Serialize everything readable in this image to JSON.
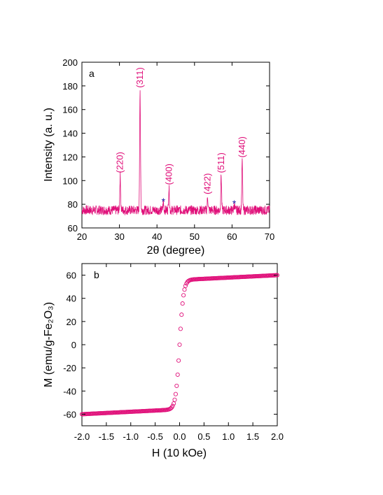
{
  "chart_data": [
    {
      "type": "line",
      "panel_label": "a",
      "xlabel": "2θ (degree)",
      "ylabel": "Intensity (a. u.)",
      "xlim": [
        20,
        70
      ],
      "ylim": [
        60,
        200
      ],
      "xticks": [
        20,
        30,
        40,
        50,
        60,
        70
      ],
      "yticks": [
        60,
        80,
        100,
        120,
        140,
        160,
        180,
        200
      ],
      "line_color": "#e0107a",
      "marker_color": "#1a1aa8",
      "baseline": 75,
      "peaks": [
        {
          "x": 30.2,
          "y": 104,
          "label": "(220)"
        },
        {
          "x": 35.5,
          "y": 176,
          "label": "(311)"
        },
        {
          "x": 43.2,
          "y": 94,
          "label": "(400)"
        },
        {
          "x": 53.5,
          "y": 86,
          "label": "(422)"
        },
        {
          "x": 57.1,
          "y": 104,
          "label": "(511)"
        },
        {
          "x": 62.7,
          "y": 117,
          "label": "(440)"
        }
      ],
      "minor_peaks": [
        {
          "x": 41.7,
          "y": 82,
          "label": "*"
        },
        {
          "x": 60.6,
          "y": 80,
          "label": "*"
        }
      ]
    },
    {
      "type": "scatter",
      "panel_label": "b",
      "xlabel": "H (10 kOe)",
      "ylabel": "M (emu/g-Fe₂O₃)",
      "xlim": [
        -2.0,
        2.0
      ],
      "ylim": [
        -70,
        70
      ],
      "xticks": [
        "-2.0",
        "-1.5",
        "-1.0",
        "-0.5",
        "0.0",
        "0.5",
        "1.0",
        "1.5",
        "2.0"
      ],
      "yticks": [
        60,
        40,
        20,
        0,
        -20,
        -40,
        -60
      ],
      "marker_color": "#e0107a",
      "saturation_magnetization": 60,
      "curve_width": 0.08
    }
  ]
}
